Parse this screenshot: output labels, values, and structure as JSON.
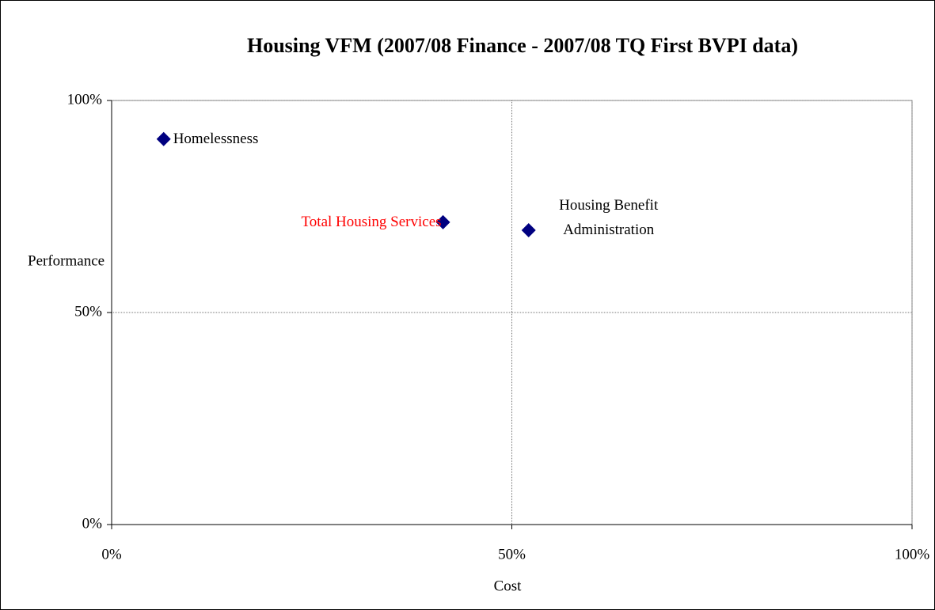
{
  "chart_data": {
    "type": "scatter",
    "title": "Housing VFM (2007/08 Finance - 2007/08 TQ First BVPI data)",
    "x_label": "Cost",
    "y_label": "Performance",
    "labels": [
      "Homelessness",
      "Total Housing Services",
      "Housing Benefit Administration"
    ],
    "label_colors": [
      "#000000",
      "#ff0000",
      "#000000"
    ],
    "x": [
      6.5,
      41.4,
      52.1
    ],
    "values": [
      90.9,
      71.3,
      69.4
    ],
    "color": "#000080",
    "xlim": [
      0,
      100
    ],
    "ylim": [
      0,
      100
    ],
    "xticks": [
      {
        "value": 0,
        "label": "0%"
      },
      {
        "value": 50,
        "label": "50%"
      },
      {
        "value": 100,
        "label": "100%"
      }
    ],
    "yticks": [
      {
        "value": 0,
        "label": "0%"
      },
      {
        "value": 50,
        "label": "50%"
      },
      {
        "value": 100,
        "label": "100%"
      }
    ],
    "grid": true
  }
}
